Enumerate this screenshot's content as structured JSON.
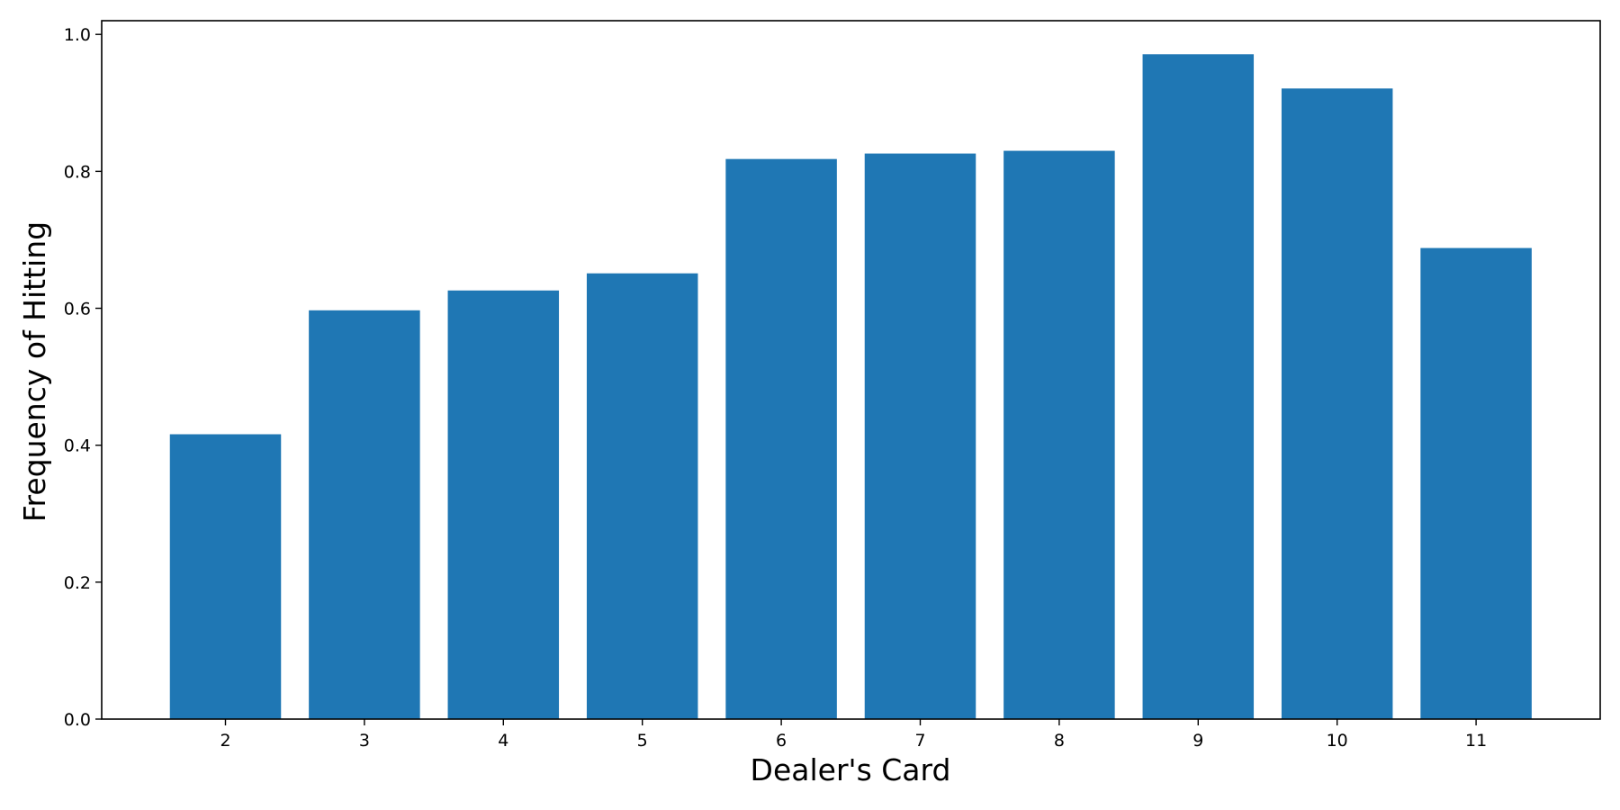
{
  "chart_data": {
    "type": "bar",
    "title": "",
    "xlabel": "Dealer's Card",
    "ylabel": "Frequency of Hitting",
    "categories": [
      "2",
      "3",
      "4",
      "5",
      "6",
      "7",
      "8",
      "9",
      "10",
      "11"
    ],
    "values": [
      0.416,
      0.597,
      0.626,
      0.651,
      0.818,
      0.826,
      0.83,
      0.971,
      0.921,
      0.688
    ],
    "ylim": [
      0,
      1.02
    ],
    "yticks": [
      "0.0",
      "0.2",
      "0.4",
      "0.6",
      "0.8",
      "1.0"
    ],
    "bar_color": "#1f77b4",
    "grid": false,
    "legend": "none"
  }
}
